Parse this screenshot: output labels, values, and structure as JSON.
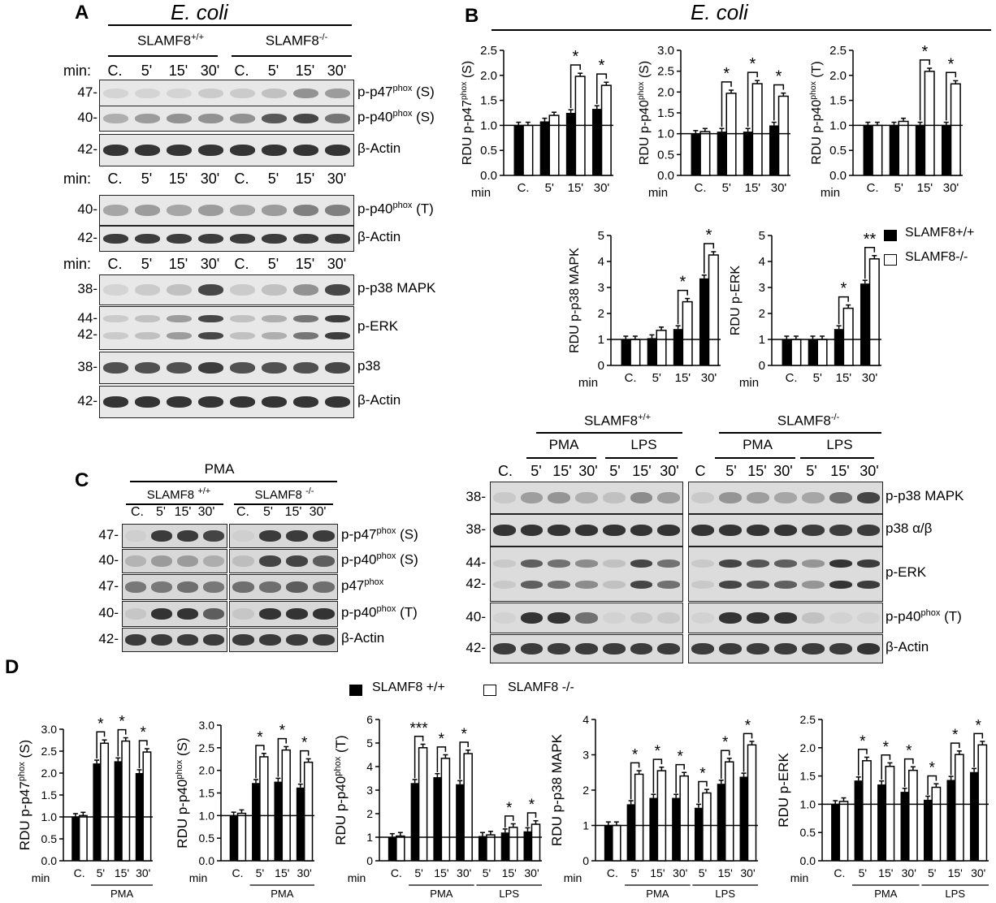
{
  "panels": {
    "A": {
      "letter": "A",
      "organism": "E. coli",
      "genotypes": [
        "SLAMF8+/+",
        "SLAMF8-/-"
      ],
      "time_label": "min:",
      "time_points": [
        "C.",
        "5'",
        "15'",
        "30'",
        "C.",
        "5'",
        "15'",
        "30'"
      ],
      "blots": [
        {
          "mw": [
            "47-"
          ],
          "label": "p-p47phox (S)"
        },
        {
          "mw": [
            "40-"
          ],
          "label": "p-p40phox (S)"
        },
        {
          "mw": [
            "42-"
          ],
          "label": "β-Actin"
        },
        {
          "mw": [
            "40-"
          ],
          "label": "p-p40phox (T)"
        },
        {
          "mw": [
            "42-"
          ],
          "label": "β-Actin"
        },
        {
          "mw": [
            "38-"
          ],
          "label": "p-p38 MAPK"
        },
        {
          "mw": [
            "44-",
            "42-"
          ],
          "label": "p-ERK"
        },
        {
          "mw": [
            "38-"
          ],
          "label": "p38"
        },
        {
          "mw": [
            "42-"
          ],
          "label": "β-Actin"
        }
      ]
    },
    "B": {
      "letter": "B",
      "organism": "E. coli",
      "legend": [
        "SLAMF8+/+",
        "SLAMF8-/-"
      ]
    },
    "C": {
      "letter": "C",
      "treatment": "PMA",
      "genotypes": [
        "SLAMF8 +/+",
        "SLAMF8 -/-"
      ],
      "time_points": [
        "C.",
        "5'",
        "15'",
        "30'",
        "C.",
        "5'",
        "15'",
        "30'"
      ],
      "blots": [
        {
          "mw": "47-",
          "label": "p-p47phox (S)"
        },
        {
          "mw": "40-",
          "label": "p-p40phox (S)"
        },
        {
          "mw": "47-",
          "label": "p47phox"
        },
        {
          "mw": "40-",
          "label": "p-p40phox (T)"
        },
        {
          "mw": "42-",
          "label": "β-Actin"
        }
      ],
      "right": {
        "genotypes": [
          "SLAMF8+/+",
          "SLAMF8-/-"
        ],
        "treatments": [
          "PMA",
          "LPS",
          "PMA",
          "LPS"
        ],
        "time_points": [
          "C.",
          "5'",
          "15'",
          "30'",
          "5'",
          "15'",
          "30'",
          "C",
          "5'",
          "15'",
          "30'",
          "5'",
          "15'",
          "30'"
        ],
        "blots": [
          {
            "mw": [
              "38-"
            ],
            "label": "p-p38 MAPK"
          },
          {
            "mw": [
              "38-"
            ],
            "label": "p38 α/β"
          },
          {
            "mw": [
              "44-",
              "42-"
            ],
            "label": "p-ERK"
          },
          {
            "mw": [
              "40-"
            ],
            "label": "p-p40phox (T)"
          },
          {
            "mw": [
              "42-"
            ],
            "label": "β-Actin"
          }
        ]
      }
    },
    "D": {
      "letter": "D",
      "legend": [
        "SLAMF8 +/+",
        "SLAMF8 -/-"
      ],
      "group_labels": [
        "PMA",
        "LPS"
      ]
    }
  },
  "chart_data": [
    {
      "type": "bar",
      "panel": "B",
      "ylabel": "RDU p-p47phox (S)",
      "xlabel": "min",
      "categories": [
        "C.",
        "5'",
        "15'",
        "30'"
      ],
      "ylim": [
        0,
        2.5
      ],
      "yticks": [
        "0.0",
        "0.5",
        "1.0",
        "1.5",
        "2.0",
        "2.5"
      ],
      "series": [
        {
          "name": "SLAMF8+/+",
          "values": [
            1.0,
            1.08,
            1.25,
            1.33
          ]
        },
        {
          "name": "SLAMF8-/-",
          "values": [
            1.0,
            1.2,
            1.98,
            1.8
          ]
        }
      ],
      "significance": [
        null,
        null,
        "*",
        "*"
      ]
    },
    {
      "type": "bar",
      "panel": "B",
      "ylabel": "RDU p-p40phox (S)",
      "xlabel": "min",
      "categories": [
        "C.",
        "5'",
        "15'",
        "30'"
      ],
      "ylim": [
        0,
        3.0
      ],
      "yticks": [
        "0.0",
        "0.5",
        "1.0",
        "1.5",
        "2.0",
        "2.5",
        "3.0"
      ],
      "series": [
        {
          "name": "SLAMF8+/+",
          "values": [
            1.0,
            1.05,
            1.05,
            1.2
          ]
        },
        {
          "name": "SLAMF8-/-",
          "values": [
            1.05,
            1.97,
            2.2,
            1.9
          ]
        }
      ],
      "significance": [
        null,
        "*",
        "*",
        "*"
      ]
    },
    {
      "type": "bar",
      "panel": "B",
      "ylabel": "RDU p-p40phox (T)",
      "xlabel": "min",
      "categories": [
        "C.",
        "5'",
        "15'",
        "30'"
      ],
      "ylim": [
        0,
        2.5
      ],
      "yticks": [
        "0.0",
        "0.5",
        "1.0",
        "1.5",
        "2.0",
        "2.5"
      ],
      "series": [
        {
          "name": "SLAMF8+/+",
          "values": [
            1.0,
            1.0,
            1.0,
            1.0
          ]
        },
        {
          "name": "SLAMF8-/-",
          "values": [
            1.0,
            1.08,
            2.08,
            1.83
          ]
        }
      ],
      "significance": [
        null,
        null,
        "*",
        "*"
      ]
    },
    {
      "type": "bar",
      "panel": "B",
      "ylabel": "RDU p-p38 MAPK",
      "xlabel": "min",
      "categories": [
        "C.",
        "5'",
        "15'",
        "30'"
      ],
      "ylim": [
        0,
        5
      ],
      "yticks": [
        "0",
        "1",
        "2",
        "3",
        "4",
        "5"
      ],
      "series": [
        {
          "name": "SLAMF8+/+",
          "values": [
            1.0,
            1.05,
            1.4,
            3.35
          ]
        },
        {
          "name": "SLAMF8-/-",
          "values": [
            1.0,
            1.35,
            2.45,
            4.25
          ]
        }
      ],
      "significance": [
        null,
        null,
        "*",
        "*"
      ]
    },
    {
      "type": "bar",
      "panel": "B",
      "ylabel": "RDU p-ERK",
      "xlabel": "min",
      "categories": [
        "C.",
        "5'",
        "15'",
        "30'"
      ],
      "ylim": [
        0,
        5
      ],
      "yticks": [
        "0",
        "1",
        "2",
        "3",
        "4",
        "5"
      ],
      "series": [
        {
          "name": "SLAMF8+/+",
          "values": [
            1.0,
            1.0,
            1.4,
            3.15
          ]
        },
        {
          "name": "SLAMF8-/-",
          "values": [
            1.0,
            1.0,
            2.2,
            4.1
          ]
        }
      ],
      "significance": [
        null,
        null,
        "*",
        "**"
      ]
    },
    {
      "type": "bar",
      "panel": "D",
      "ylabel": "RDU p-p47phox (S)",
      "xlabel": "min",
      "categories": [
        "C.",
        "5'",
        "15'",
        "30'"
      ],
      "ylim": [
        0,
        3.0
      ],
      "yticks": [
        "0.0",
        "0.5",
        "1.0",
        "1.5",
        "2.0",
        "2.5",
        "3.0"
      ],
      "series": [
        {
          "name": "SLAMF8 +/+",
          "values": [
            1.0,
            2.22,
            2.27,
            2.0
          ]
        },
        {
          "name": "SLAMF8 -/-",
          "values": [
            1.03,
            2.68,
            2.73,
            2.48
          ]
        }
      ],
      "significance": [
        null,
        "*",
        "*",
        "*"
      ]
    },
    {
      "type": "bar",
      "panel": "D",
      "ylabel": "RDU p-p40phox (S)",
      "xlabel": "min",
      "categories": [
        "C.",
        "5'",
        "15'",
        "30'"
      ],
      "ylim": [
        0,
        3.0
      ],
      "yticks": [
        "0.0",
        "0.5",
        "1.0",
        "1.5",
        "2.0",
        "2.5",
        "3.0"
      ],
      "series": [
        {
          "name": "SLAMF8 +/+",
          "values": [
            1.0,
            1.72,
            1.75,
            1.62
          ]
        },
        {
          "name": "SLAMF8 -/-",
          "values": [
            1.05,
            2.3,
            2.45,
            2.18
          ]
        }
      ],
      "significance": [
        null,
        "*",
        "*",
        "*"
      ]
    },
    {
      "type": "bar",
      "panel": "D",
      "ylabel": "RDU p-p40phox (T)",
      "xlabel": "min",
      "categories": [
        "C.",
        "5'",
        "15'",
        "30'",
        "5'",
        "15'",
        "30'"
      ],
      "ylim": [
        0,
        6
      ],
      "yticks": [
        "0",
        "1",
        "2",
        "3",
        "4",
        "5",
        "6"
      ],
      "series": [
        {
          "name": "SLAMF8 +/+",
          "values": [
            1.0,
            3.3,
            3.55,
            3.25,
            1.05,
            1.2,
            1.25
          ]
        },
        {
          "name": "SLAMF8 -/-",
          "values": [
            1.05,
            4.8,
            4.35,
            4.55,
            1.1,
            1.42,
            1.55
          ]
        }
      ],
      "significance": [
        null,
        "***",
        "*",
        "*",
        null,
        "*",
        "*"
      ]
    },
    {
      "type": "bar",
      "panel": "D",
      "ylabel": "RDU p-p38 MAPK",
      "xlabel": "min",
      "categories": [
        "C.",
        "5'",
        "15'",
        "30'",
        "5'",
        "15'",
        "30'"
      ],
      "ylim": [
        0,
        4
      ],
      "yticks": [
        "0",
        "1",
        "2",
        "3",
        "4"
      ],
      "series": [
        {
          "name": "SLAMF8 +/+",
          "values": [
            1.0,
            1.6,
            1.78,
            1.78,
            1.5,
            2.18,
            2.38
          ]
        },
        {
          "name": "SLAMF8 -/-",
          "values": [
            1.0,
            2.45,
            2.55,
            2.4,
            1.92,
            2.8,
            3.28
          ]
        }
      ],
      "significance": [
        null,
        "*",
        "*",
        "*",
        "*",
        "*",
        "*"
      ]
    },
    {
      "type": "bar",
      "panel": "D",
      "ylabel": "RDU p-ERK",
      "xlabel": "min",
      "categories": [
        "C.",
        "5'",
        "15'",
        "30'",
        "5'",
        "15'",
        "30'"
      ],
      "ylim": [
        0,
        2.5
      ],
      "yticks": [
        "0.0",
        "0.5",
        "1.0",
        "1.5",
        "2.0",
        "2.5"
      ],
      "series": [
        {
          "name": "SLAMF8 +/+",
          "values": [
            1.0,
            1.42,
            1.35,
            1.22,
            1.08,
            1.43,
            1.57
          ]
        },
        {
          "name": "SLAMF8 -/-",
          "values": [
            1.05,
            1.77,
            1.67,
            1.6,
            1.3,
            1.88,
            2.05
          ]
        }
      ],
      "significance": [
        null,
        "*",
        "*",
        "*",
        "*",
        "*",
        "*"
      ]
    }
  ]
}
